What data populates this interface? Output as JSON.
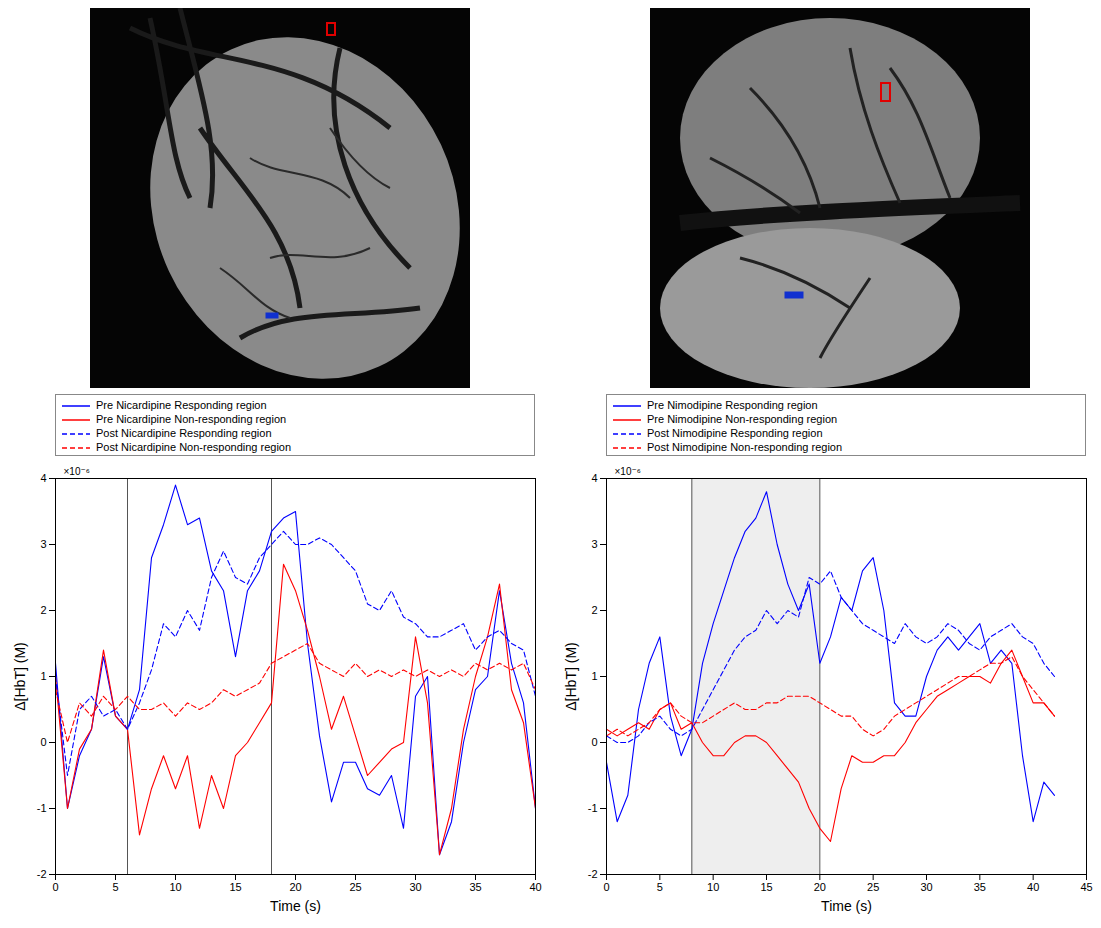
{
  "chart_data": [
    {
      "type": "line",
      "legend": "top",
      "x_label": "Time (s)",
      "y_label": "Δ[HbT] (M)",
      "y_axis_multiplier": "×10⁻⁶",
      "xlim": [
        0,
        40
      ],
      "xticks": [
        0,
        5,
        10,
        15,
        20,
        25,
        30,
        35,
        40
      ],
      "ylim": [
        -2,
        4
      ],
      "yticks": [
        -2,
        -1,
        0,
        1,
        2,
        3,
        4
      ],
      "stimulus_lines": [
        6,
        18
      ],
      "x": [
        0,
        1,
        2,
        3,
        4,
        5,
        6,
        7,
        8,
        9,
        10,
        11,
        12,
        13,
        14,
        15,
        16,
        17,
        18,
        19,
        20,
        21,
        22,
        23,
        24,
        25,
        26,
        27,
        28,
        29,
        30,
        31,
        32,
        33,
        34,
        35,
        36,
        37,
        38,
        39,
        40
      ],
      "series": [
        {
          "name": "Pre Nicardipine Responding region",
          "color": "#0000ff",
          "line_style": "solid",
          "values": [
            1.2,
            -1.0,
            -0.2,
            0.2,
            1.3,
            0.4,
            0.2,
            0.8,
            2.8,
            3.3,
            3.9,
            3.3,
            3.4,
            2.6,
            2.3,
            1.3,
            2.3,
            2.6,
            3.2,
            3.4,
            3.5,
            1.5,
            0.1,
            -0.9,
            -0.3,
            -0.3,
            -0.7,
            -0.8,
            -0.5,
            -1.3,
            0.7,
            1.0,
            -1.7,
            -1.2,
            0.0,
            0.8,
            1.0,
            2.3,
            1.2,
            0.6,
            -1.0
          ]
        },
        {
          "name": "Pre Nicardipine Non-responding region",
          "color": "#ff0000",
          "line_style": "solid",
          "values": [
            1.0,
            -1.0,
            -0.1,
            0.2,
            1.4,
            0.4,
            0.2,
            -1.4,
            -0.7,
            -0.2,
            -0.7,
            -0.2,
            -1.3,
            -0.5,
            -1.0,
            -0.2,
            0.0,
            0.3,
            0.6,
            2.7,
            2.3,
            1.7,
            1.0,
            0.2,
            0.7,
            0.1,
            -0.5,
            -0.3,
            -0.1,
            0.0,
            1.6,
            0.6,
            -1.7,
            -1.0,
            0.2,
            1.0,
            1.6,
            2.4,
            0.8,
            0.3,
            -1.0
          ]
        },
        {
          "name": "Post Nicardipine Responding region",
          "color": "#0000ff",
          "line_style": "dashed",
          "values": [
            1.0,
            -0.5,
            0.5,
            0.7,
            0.4,
            0.5,
            0.2,
            0.6,
            1.1,
            1.8,
            1.6,
            2.0,
            1.7,
            2.5,
            2.9,
            2.5,
            2.4,
            2.8,
            3.0,
            3.2,
            3.0,
            3.0,
            3.1,
            3.0,
            2.8,
            2.6,
            2.1,
            2.0,
            2.3,
            1.9,
            1.8,
            1.6,
            1.6,
            1.7,
            1.8,
            1.4,
            1.6,
            1.7,
            1.5,
            1.4,
            0.7
          ]
        },
        {
          "name": "Post Nicardipine Non-responding region",
          "color": "#ff0000",
          "line_style": "dashed",
          "values": [
            0.8,
            0.0,
            0.6,
            0.4,
            0.7,
            0.5,
            0.7,
            0.5,
            0.5,
            0.6,
            0.4,
            0.6,
            0.5,
            0.6,
            0.8,
            0.7,
            0.8,
            0.9,
            1.2,
            1.3,
            1.4,
            1.5,
            1.2,
            1.1,
            1.0,
            1.2,
            1.0,
            1.1,
            1.0,
            1.1,
            1.0,
            1.1,
            1.0,
            1.1,
            1.0,
            1.2,
            1.1,
            1.2,
            1.1,
            1.2,
            0.8
          ]
        }
      ]
    },
    {
      "type": "line",
      "legend": "top",
      "x_label": "Time (s)",
      "y_label": "Δ[HbT] (M)",
      "y_axis_multiplier": "×10⁻⁶",
      "xlim": [
        0,
        45
      ],
      "xticks": [
        0,
        5,
        10,
        15,
        20,
        25,
        30,
        35,
        40,
        45
      ],
      "ylim": [
        -2,
        4
      ],
      "yticks": [
        -2,
        -1,
        0,
        1,
        2,
        3,
        4
      ],
      "stimulus_band": [
        8,
        20
      ],
      "x": [
        0,
        1,
        2,
        3,
        4,
        5,
        6,
        7,
        8,
        9,
        10,
        11,
        12,
        13,
        14,
        15,
        16,
        17,
        18,
        19,
        20,
        21,
        22,
        23,
        24,
        25,
        26,
        27,
        28,
        29,
        30,
        31,
        32,
        33,
        34,
        35,
        36,
        37,
        38,
        39,
        40,
        41,
        42
      ],
      "series": [
        {
          "name": "Pre Nimodipine Responding region",
          "color": "#0000ff",
          "line_style": "solid",
          "values": [
            -0.3,
            -1.2,
            -0.8,
            0.5,
            1.2,
            1.6,
            0.4,
            -0.2,
            0.2,
            1.2,
            1.8,
            2.3,
            2.8,
            3.2,
            3.4,
            3.8,
            3.0,
            2.4,
            2.0,
            2.4,
            1.2,
            1.6,
            2.2,
            2.0,
            2.6,
            2.8,
            2.0,
            0.6,
            0.4,
            0.4,
            1.0,
            1.4,
            1.6,
            1.4,
            1.6,
            1.8,
            1.2,
            1.4,
            1.2,
            -0.2,
            -1.2,
            -0.6,
            -0.8
          ]
        },
        {
          "name": "Pre Nimodipine Non-responding region",
          "color": "#ff0000",
          "line_style": "solid",
          "values": [
            0.2,
            0.1,
            0.2,
            0.3,
            0.2,
            0.5,
            0.6,
            0.2,
            0.3,
            0.0,
            -0.2,
            -0.2,
            0.0,
            0.1,
            0.1,
            0.0,
            -0.2,
            -0.4,
            -0.6,
            -1.0,
            -1.3,
            -1.5,
            -0.7,
            -0.2,
            -0.3,
            -0.3,
            -0.2,
            -0.2,
            0.0,
            0.3,
            0.5,
            0.7,
            0.8,
            0.9,
            1.0,
            1.0,
            0.9,
            1.2,
            1.4,
            1.0,
            0.6,
            0.6,
            0.4
          ]
        },
        {
          "name": "Post Nimodipine Responding region",
          "color": "#0000ff",
          "line_style": "dashed",
          "values": [
            0.1,
            0.0,
            0.0,
            0.1,
            0.3,
            0.4,
            0.2,
            0.1,
            0.2,
            0.5,
            0.8,
            1.1,
            1.4,
            1.6,
            1.7,
            2.0,
            1.8,
            2.0,
            1.9,
            2.5,
            2.4,
            2.6,
            2.2,
            2.0,
            1.8,
            1.7,
            1.6,
            1.5,
            1.8,
            1.6,
            1.5,
            1.6,
            1.8,
            1.7,
            1.5,
            1.4,
            1.6,
            1.7,
            1.8,
            1.6,
            1.5,
            1.2,
            1.0
          ]
        },
        {
          "name": "Post Nimodipine Non-responding region",
          "color": "#ff0000",
          "line_style": "dashed",
          "values": [
            0.1,
            0.2,
            0.1,
            0.2,
            0.3,
            0.5,
            0.6,
            0.4,
            0.3,
            0.3,
            0.4,
            0.5,
            0.6,
            0.5,
            0.5,
            0.6,
            0.6,
            0.7,
            0.7,
            0.7,
            0.6,
            0.5,
            0.4,
            0.4,
            0.2,
            0.1,
            0.2,
            0.4,
            0.5,
            0.6,
            0.7,
            0.8,
            0.9,
            1.0,
            1.0,
            1.1,
            1.2,
            1.2,
            1.3,
            1.0,
            0.8,
            0.6,
            0.4
          ]
        }
      ]
    }
  ]
}
